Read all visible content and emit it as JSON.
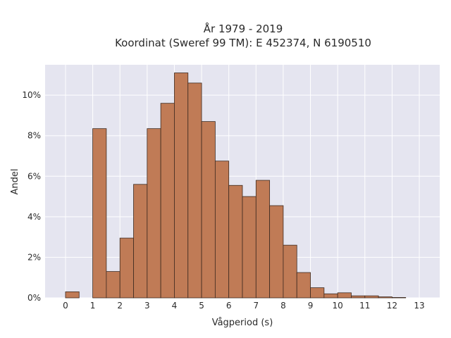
{
  "chart_data": {
    "type": "bar",
    "title": "År 1979 - 2019",
    "subtitle": "Koordinat (Sweref 99 TM): E 452374, N 6190510",
    "xlabel": "Vågperiod (s)",
    "ylabel": "Andel",
    "xlim": [
      -0.75,
      13.75
    ],
    "ylim": [
      0,
      11.5
    ],
    "x_ticks": [
      0,
      1,
      2,
      3,
      4,
      5,
      6,
      7,
      8,
      9,
      10,
      11,
      12,
      13
    ],
    "y_ticks": [
      0,
      2,
      4,
      6,
      8,
      10
    ],
    "y_tick_labels": [
      "0%",
      "2%",
      "4%",
      "6%",
      "8%",
      "10%"
    ],
    "bin_width": 0.5,
    "bins": [
      {
        "x0": 0.0,
        "value": 0.3
      },
      {
        "x0": 1.0,
        "value": 8.35
      },
      {
        "x0": 1.5,
        "value": 1.3
      },
      {
        "x0": 2.0,
        "value": 2.95
      },
      {
        "x0": 2.5,
        "value": 5.6
      },
      {
        "x0": 3.0,
        "value": 8.35
      },
      {
        "x0": 3.5,
        "value": 9.6
      },
      {
        "x0": 4.0,
        "value": 11.1
      },
      {
        "x0": 4.5,
        "value": 10.6
      },
      {
        "x0": 5.0,
        "value": 8.7
      },
      {
        "x0": 5.5,
        "value": 6.75
      },
      {
        "x0": 6.0,
        "value": 5.55
      },
      {
        "x0": 6.5,
        "value": 5.0
      },
      {
        "x0": 7.0,
        "value": 5.8
      },
      {
        "x0": 7.5,
        "value": 4.55
      },
      {
        "x0": 8.0,
        "value": 2.6
      },
      {
        "x0": 8.5,
        "value": 1.25
      },
      {
        "x0": 9.0,
        "value": 0.5
      },
      {
        "x0": 9.5,
        "value": 0.2
      },
      {
        "x0": 10.0,
        "value": 0.25
      },
      {
        "x0": 10.5,
        "value": 0.1
      },
      {
        "x0": 11.0,
        "value": 0.1
      },
      {
        "x0": 11.5,
        "value": 0.05
      },
      {
        "x0": 12.0,
        "value": 0.02
      }
    ],
    "grid": true,
    "colors": {
      "plot_bg": "#e5e5f0",
      "grid": "#ffffff",
      "bar_fill": "#c07b56",
      "bar_edge": "#3d2a20"
    }
  }
}
